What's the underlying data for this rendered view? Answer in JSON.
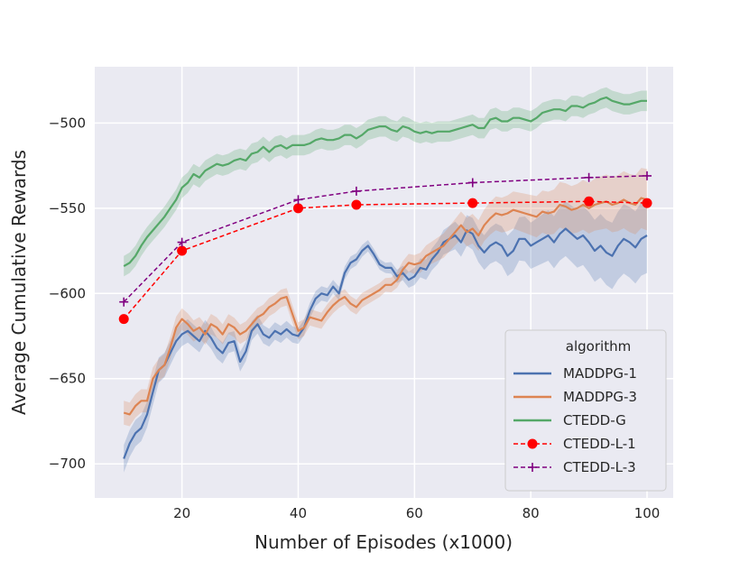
{
  "chart_data": {
    "type": "line",
    "title": "",
    "xlabel": "Number of Episodes (x1000)",
    "ylabel": "Average Cumulative Rewards",
    "xlim": [
      5,
      104.5
    ],
    "ylim": [
      -720,
      -467
    ],
    "xticks": [
      20,
      40,
      60,
      80,
      100
    ],
    "yticks": [
      -700,
      -650,
      -600,
      -550,
      -500
    ],
    "xtick_labels": [
      "20",
      "40",
      "60",
      "80",
      "100"
    ],
    "ytick_labels": [
      "−700",
      "−650",
      "−600",
      "−550",
      "−500"
    ],
    "grid": true,
    "legend_position": "lower-right",
    "legend_title": "algorithm",
    "series": [
      {
        "name": "MADDPG-1",
        "color": "#4c72b0",
        "style": "solid",
        "band": true,
        "band_width": [
          8,
          3,
          22
        ],
        "points": [
          [
            10,
            -697
          ],
          [
            11,
            -688
          ],
          [
            12,
            -682
          ],
          [
            13,
            -679
          ],
          [
            14,
            -671
          ],
          [
            15,
            -658
          ],
          [
            16,
            -645
          ],
          [
            17,
            -642
          ],
          [
            18,
            -635
          ],
          [
            19,
            -628
          ],
          [
            20,
            -624
          ],
          [
            21,
            -622
          ],
          [
            22,
            -625
          ],
          [
            23,
            -628
          ],
          [
            24,
            -622
          ],
          [
            25,
            -626
          ],
          [
            26,
            -632
          ],
          [
            27,
            -635
          ],
          [
            28,
            -629
          ],
          [
            29,
            -628
          ],
          [
            30,
            -640
          ],
          [
            31,
            -634
          ],
          [
            32,
            -622
          ],
          [
            33,
            -618
          ],
          [
            34,
            -624
          ],
          [
            35,
            -626
          ],
          [
            36,
            -622
          ],
          [
            37,
            -624
          ],
          [
            38,
            -621
          ],
          [
            39,
            -624
          ],
          [
            40,
            -625
          ],
          [
            41,
            -620
          ],
          [
            42,
            -610
          ],
          [
            43,
            -603
          ],
          [
            44,
            -600
          ],
          [
            45,
            -601
          ],
          [
            46,
            -596
          ],
          [
            47,
            -600
          ],
          [
            48,
            -588
          ],
          [
            49,
            -582
          ],
          [
            50,
            -580
          ],
          [
            51,
            -575
          ],
          [
            52,
            -572
          ],
          [
            53,
            -577
          ],
          [
            54,
            -583
          ],
          [
            55,
            -585
          ],
          [
            56,
            -585
          ],
          [
            57,
            -590
          ],
          [
            58,
            -588
          ],
          [
            59,
            -592
          ],
          [
            60,
            -590
          ],
          [
            61,
            -585
          ],
          [
            62,
            -586
          ],
          [
            63,
            -580
          ],
          [
            64,
            -576
          ],
          [
            65,
            -570
          ],
          [
            66,
            -568
          ],
          [
            67,
            -566
          ],
          [
            68,
            -570
          ],
          [
            69,
            -563
          ],
          [
            70,
            -565
          ],
          [
            71,
            -572
          ],
          [
            72,
            -576
          ],
          [
            73,
            -572
          ],
          [
            74,
            -570
          ],
          [
            75,
            -572
          ],
          [
            76,
            -578
          ],
          [
            77,
            -575
          ],
          [
            78,
            -568
          ],
          [
            79,
            -568
          ],
          [
            80,
            -572
          ],
          [
            81,
            -570
          ],
          [
            82,
            -568
          ],
          [
            83,
            -566
          ],
          [
            84,
            -570
          ],
          [
            85,
            -565
          ],
          [
            86,
            -562
          ],
          [
            87,
            -565
          ],
          [
            88,
            -568
          ],
          [
            89,
            -566
          ],
          [
            90,
            -570
          ],
          [
            91,
            -575
          ],
          [
            92,
            -572
          ],
          [
            93,
            -576
          ],
          [
            94,
            -578
          ],
          [
            95,
            -572
          ],
          [
            96,
            -568
          ],
          [
            97,
            -570
          ],
          [
            98,
            -573
          ],
          [
            99,
            -568
          ],
          [
            100,
            -566
          ]
        ]
      },
      {
        "name": "MADDPG-3",
        "color": "#dd8452",
        "style": "solid",
        "band": true,
        "band_width": [
          7,
          4,
          18
        ],
        "points": [
          [
            10,
            -670
          ],
          [
            11,
            -671
          ],
          [
            12,
            -666
          ],
          [
            13,
            -663
          ],
          [
            14,
            -663
          ],
          [
            15,
            -650
          ],
          [
            16,
            -645
          ],
          [
            17,
            -642
          ],
          [
            18,
            -632
          ],
          [
            19,
            -620
          ],
          [
            20,
            -615
          ],
          [
            21,
            -618
          ],
          [
            22,
            -622
          ],
          [
            23,
            -620
          ],
          [
            24,
            -624
          ],
          [
            25,
            -618
          ],
          [
            26,
            -620
          ],
          [
            27,
            -624
          ],
          [
            28,
            -618
          ],
          [
            29,
            -620
          ],
          [
            30,
            -624
          ],
          [
            31,
            -622
          ],
          [
            32,
            -618
          ],
          [
            33,
            -614
          ],
          [
            34,
            -612
          ],
          [
            35,
            -608
          ],
          [
            36,
            -606
          ],
          [
            37,
            -603
          ],
          [
            38,
            -602
          ],
          [
            39,
            -612
          ],
          [
            40,
            -622
          ],
          [
            41,
            -620
          ],
          [
            42,
            -614
          ],
          [
            43,
            -615
          ],
          [
            44,
            -616
          ],
          [
            45,
            -611
          ],
          [
            46,
            -607
          ],
          [
            47,
            -604
          ],
          [
            48,
            -602
          ],
          [
            49,
            -606
          ],
          [
            50,
            -608
          ],
          [
            51,
            -604
          ],
          [
            52,
            -602
          ],
          [
            53,
            -600
          ],
          [
            54,
            -598
          ],
          [
            55,
            -595
          ],
          [
            56,
            -595
          ],
          [
            57,
            -592
          ],
          [
            58,
            -586
          ],
          [
            59,
            -582
          ],
          [
            60,
            -583
          ],
          [
            61,
            -582
          ],
          [
            62,
            -578
          ],
          [
            63,
            -576
          ],
          [
            64,
            -574
          ],
          [
            65,
            -572
          ],
          [
            66,
            -568
          ],
          [
            67,
            -564
          ],
          [
            68,
            -560
          ],
          [
            69,
            -564
          ],
          [
            70,
            -562
          ],
          [
            71,
            -566
          ],
          [
            72,
            -560
          ],
          [
            73,
            -556
          ],
          [
            74,
            -553
          ],
          [
            75,
            -554
          ],
          [
            76,
            -553
          ],
          [
            77,
            -551
          ],
          [
            78,
            -552
          ],
          [
            79,
            -553
          ],
          [
            80,
            -554
          ],
          [
            81,
            -555
          ],
          [
            82,
            -552
          ],
          [
            83,
            -553
          ],
          [
            84,
            -552
          ],
          [
            85,
            -548
          ],
          [
            86,
            -549
          ],
          [
            87,
            -551
          ],
          [
            88,
            -550
          ],
          [
            89,
            -548
          ],
          [
            90,
            -550
          ],
          [
            91,
            -548
          ],
          [
            92,
            -547
          ],
          [
            93,
            -546
          ],
          [
            94,
            -548
          ],
          [
            95,
            -547
          ],
          [
            96,
            -545
          ],
          [
            97,
            -547
          ],
          [
            98,
            -548
          ],
          [
            99,
            -544
          ],
          [
            100,
            -545
          ]
        ]
      },
      {
        "name": "CTEDD-G",
        "color": "#55a868",
        "style": "solid",
        "band": true,
        "band_width": [
          6,
          6,
          6
        ],
        "points": [
          [
            10,
            -584
          ],
          [
            11,
            -582
          ],
          [
            12,
            -578
          ],
          [
            13,
            -572
          ],
          [
            14,
            -567
          ],
          [
            15,
            -563
          ],
          [
            16,
            -559
          ],
          [
            17,
            -555
          ],
          [
            18,
            -550
          ],
          [
            19,
            -545
          ],
          [
            20,
            -538
          ],
          [
            21,
            -535
          ],
          [
            22,
            -530
          ],
          [
            23,
            -532
          ],
          [
            24,
            -528
          ],
          [
            25,
            -526
          ],
          [
            26,
            -524
          ],
          [
            27,
            -525
          ],
          [
            28,
            -524
          ],
          [
            29,
            -522
          ],
          [
            30,
            -521
          ],
          [
            31,
            -522
          ],
          [
            32,
            -518
          ],
          [
            33,
            -517
          ],
          [
            34,
            -514
          ],
          [
            35,
            -517
          ],
          [
            36,
            -514
          ],
          [
            37,
            -513
          ],
          [
            38,
            -515
          ],
          [
            39,
            -513
          ],
          [
            40,
            -513
          ],
          [
            41,
            -513
          ],
          [
            42,
            -512
          ],
          [
            43,
            -510
          ],
          [
            44,
            -509
          ],
          [
            45,
            -510
          ],
          [
            46,
            -510
          ],
          [
            47,
            -509
          ],
          [
            48,
            -507
          ],
          [
            49,
            -507
          ],
          [
            50,
            -509
          ],
          [
            51,
            -507
          ],
          [
            52,
            -504
          ],
          [
            53,
            -503
          ],
          [
            54,
            -502
          ],
          [
            55,
            -502
          ],
          [
            56,
            -504
          ],
          [
            57,
            -505
          ],
          [
            58,
            -502
          ],
          [
            59,
            -503
          ],
          [
            60,
            -505
          ],
          [
            61,
            -506
          ],
          [
            62,
            -505
          ],
          [
            63,
            -506
          ],
          [
            64,
            -505
          ],
          [
            65,
            -505
          ],
          [
            66,
            -505
          ],
          [
            67,
            -504
          ],
          [
            68,
            -503
          ],
          [
            69,
            -502
          ],
          [
            70,
            -501
          ],
          [
            71,
            -503
          ],
          [
            72,
            -503
          ],
          [
            73,
            -498
          ],
          [
            74,
            -497
          ],
          [
            75,
            -499
          ],
          [
            76,
            -499
          ],
          [
            77,
            -497
          ],
          [
            78,
            -497
          ],
          [
            79,
            -498
          ],
          [
            80,
            -499
          ],
          [
            81,
            -497
          ],
          [
            82,
            -494
          ],
          [
            83,
            -493
          ],
          [
            84,
            -492
          ],
          [
            85,
            -492
          ],
          [
            86,
            -493
          ],
          [
            87,
            -490
          ],
          [
            88,
            -490
          ],
          [
            89,
            -491
          ],
          [
            90,
            -489
          ],
          [
            91,
            -488
          ],
          [
            92,
            -486
          ],
          [
            93,
            -485
          ],
          [
            94,
            -487
          ],
          [
            95,
            -488
          ],
          [
            96,
            -489
          ],
          [
            97,
            -489
          ],
          [
            98,
            -488
          ],
          [
            99,
            -487
          ],
          [
            100,
            -487
          ]
        ]
      },
      {
        "name": "CTEDD-L-1",
        "color": "#ff0000",
        "style": "dashed",
        "marker": "circle",
        "points": [
          [
            10,
            -615
          ],
          [
            20,
            -575
          ],
          [
            40,
            -550
          ],
          [
            50,
            -548
          ],
          [
            70,
            -547
          ],
          [
            90,
            -546
          ],
          [
            100,
            -547
          ]
        ]
      },
      {
        "name": "CTEDD-L-3",
        "color": "#800080",
        "style": "dashed",
        "marker": "plus",
        "points": [
          [
            10,
            -605
          ],
          [
            20,
            -570
          ],
          [
            40,
            -545
          ],
          [
            50,
            -540
          ],
          [
            70,
            -535
          ],
          [
            90,
            -532
          ],
          [
            100,
            -531
          ]
        ]
      }
    ]
  }
}
